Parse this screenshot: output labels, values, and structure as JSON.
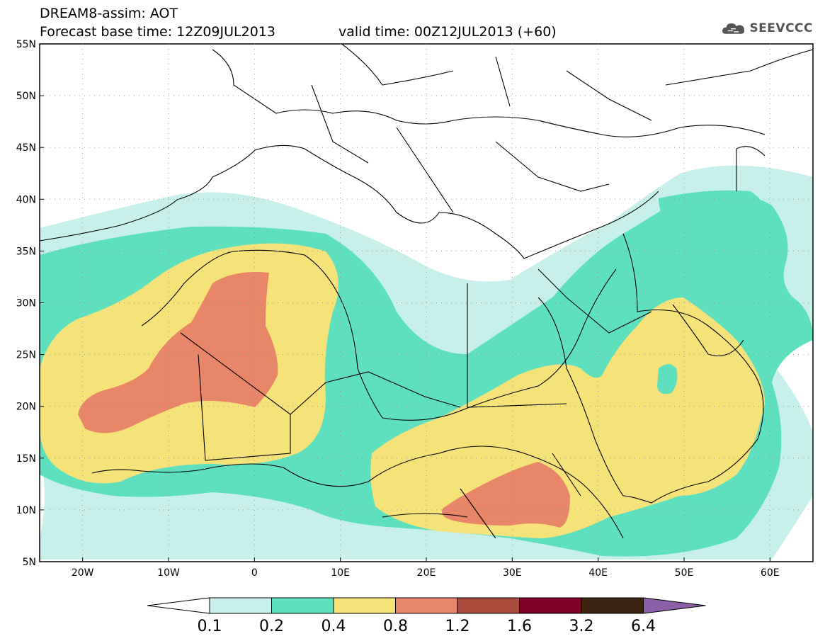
{
  "header": {
    "title_line1": "DREAM8-assim: AOT",
    "title_line2": "Forecast base time: 12Z09JUL2013",
    "valid_time": "valid time: 00Z12JUL2013 (+60)"
  },
  "logo": {
    "text": "SEEVCCC",
    "icon": "cloud-icon"
  },
  "map": {
    "variable": "AOT",
    "lat_range": [
      5,
      55
    ],
    "lon_range": [
      -25,
      65
    ],
    "lat_ticks": [
      "55N",
      "50N",
      "45N",
      "40N",
      "35N",
      "30N",
      "25N",
      "20N",
      "15N",
      "10N",
      "5N"
    ],
    "lon_ticks": [
      "20W",
      "10W",
      "0",
      "10E",
      "20E",
      "30E",
      "40E",
      "50E",
      "60E"
    ],
    "gridlines": true
  },
  "colorbar": {
    "labels": [
      "0.1",
      "0.2",
      "0.4",
      "0.8",
      "1.2",
      "1.6",
      "3.2",
      "6.4"
    ],
    "colors": [
      "#ffffff",
      "#c8f0ea",
      "#5ee0bf",
      "#f5e279",
      "#e8866a",
      "#a94a3c",
      "#800028",
      "#3d2410",
      "#8c60a8"
    ],
    "extend": "both"
  }
}
